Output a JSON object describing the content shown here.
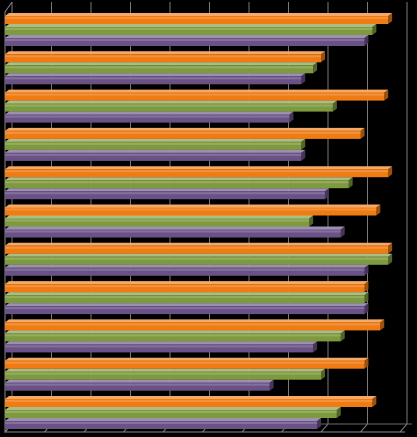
{
  "chart_data": {
    "type": "bar",
    "orientation": "horizontal",
    "style": "3d",
    "categories": [
      "",
      "",
      "",
      "",
      "",
      "",
      "",
      "",
      "",
      "",
      ""
    ],
    "xlim": [
      0,
      100
    ],
    "grid": true,
    "legend": "none",
    "title": "",
    "xlabel": "",
    "ylabel": "",
    "series": [
      {
        "color": "#f07b12",
        "values": [
          97,
          80,
          96,
          90,
          97,
          94,
          97,
          91,
          95,
          91,
          93
        ]
      },
      {
        "color": "#7e9a3e",
        "values": [
          93,
          78,
          83,
          75,
          87,
          77,
          97,
          91,
          85,
          80,
          84
        ]
      },
      {
        "color": "#6a5287",
        "values": [
          91,
          75,
          72,
          75,
          81,
          85,
          91,
          91,
          78,
          67,
          79
        ]
      }
    ]
  }
}
